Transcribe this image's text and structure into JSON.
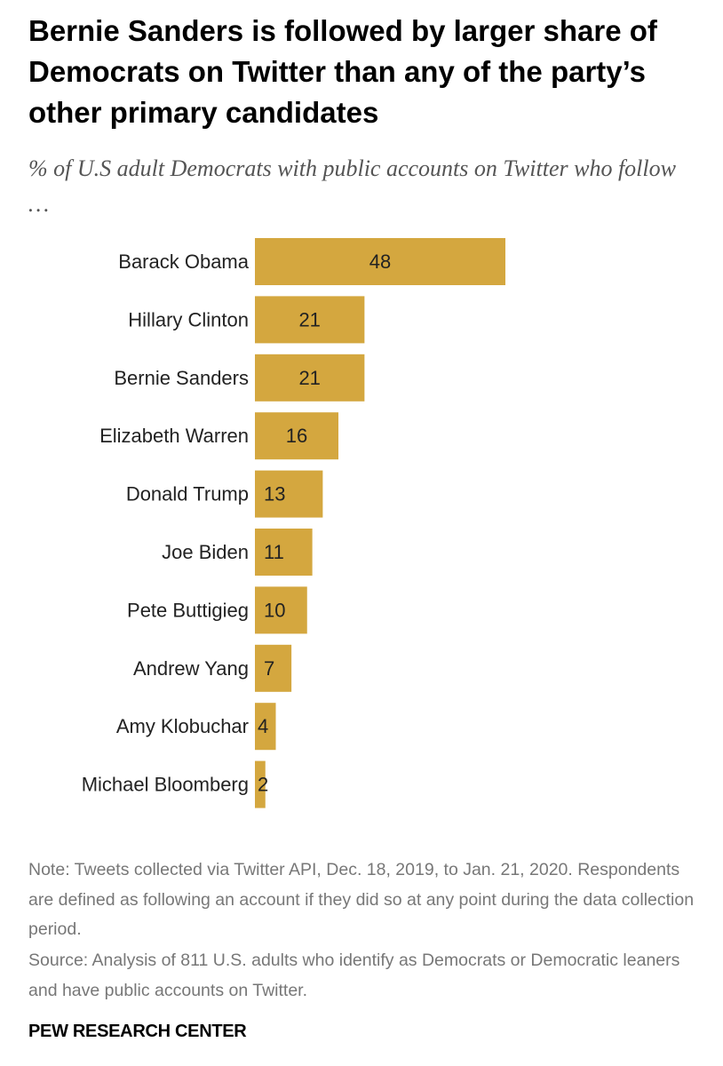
{
  "chart_data": {
    "type": "bar",
    "orientation": "horizontal",
    "title": "Bernie Sanders is followed by larger share of Democrats on Twitter than any of the party’s other primary candidates",
    "subtitle": "% of U.S adult Democrats with public accounts on Twitter who follow …",
    "categories": [
      "Barack Obama",
      "Hillary Clinton",
      "Bernie Sanders",
      "Elizabeth Warren",
      "Donald Trump",
      "Joe Biden",
      "Pete Buttigieg",
      "Andrew Yang",
      "Amy Klobuchar",
      "Michael Bloomberg"
    ],
    "values": [
      48,
      21,
      21,
      16,
      13,
      11,
      10,
      7,
      4,
      2
    ],
    "xlabel": "",
    "ylabel": "",
    "xlim": [
      0,
      48
    ],
    "grid": false,
    "legend": "none",
    "bar_color": "#D4A73F",
    "note": "Note: Tweets collected via Twitter API, Dec. 18, 2019, to Jan. 21, 2020. Respondents are defined as following an account if they did so at any point during the data collection period.",
    "source": "Source: Analysis of 811 U.S. adults who identify as Democrats or Democratic leaners and have public accounts on Twitter.",
    "branding": "PEW RESEARCH CENTER"
  }
}
